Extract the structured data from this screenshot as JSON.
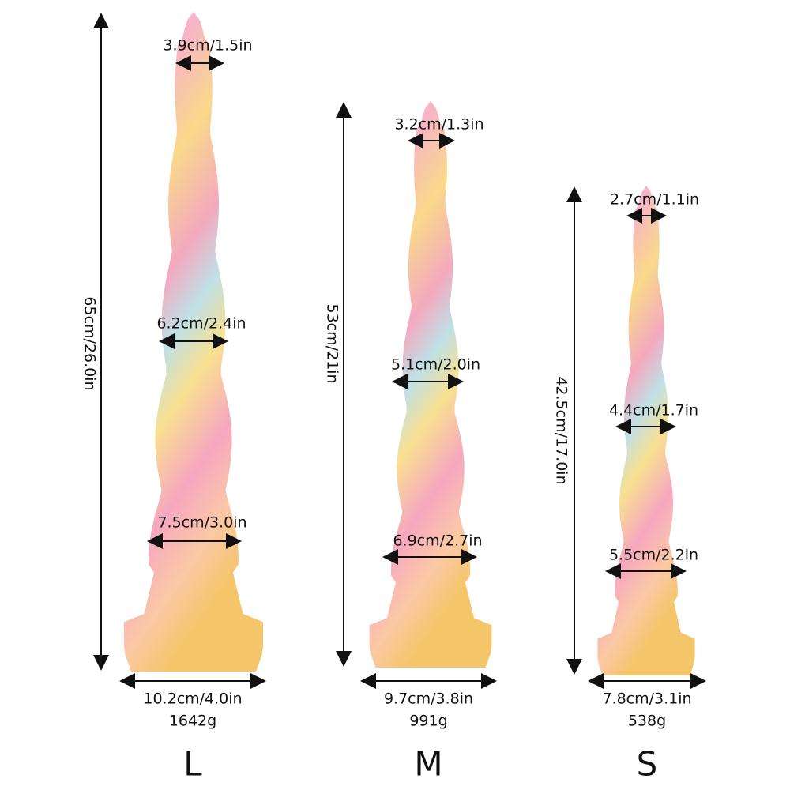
{
  "products": [
    {
      "size": "L",
      "height": "65cm/26.0in",
      "tip": "3.9cm/1.5in",
      "mid": "6.2cm/2.4in",
      "lower": "7.5cm/3.0in",
      "base": "10.2cm/4.0in",
      "weight": "1642g"
    },
    {
      "size": "M",
      "height": "53cm/21in",
      "tip": "3.2cm/1.3in",
      "mid": "5.1cm/2.0in",
      "lower": "6.9cm/2.7in",
      "base": "9.7cm/3.8in",
      "weight": "991g"
    },
    {
      "size": "S",
      "height": "42.5cm/17.0in",
      "tip": "2.7cm/1.1in",
      "mid": "4.4cm/1.7in",
      "lower": "5.5cm/2.2in",
      "base": "7.8cm/3.1in",
      "weight": "538g"
    }
  ]
}
